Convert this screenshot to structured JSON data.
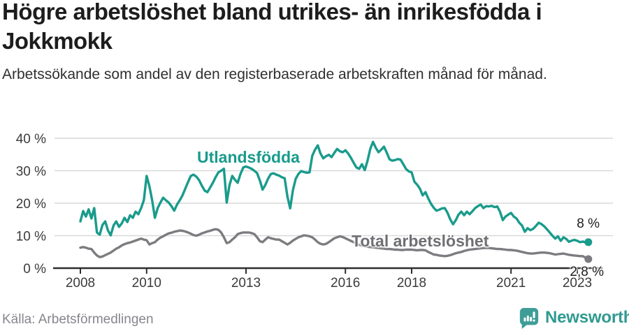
{
  "header": {
    "title": "Högre arbetslöshet bland utrikes- än inrikesfödda i Jokkmokk",
    "subtitle": "Arbetssökande som andel av den registerbaserade arbetskraften månad för månad."
  },
  "source": "Källa: Arbetsförmedlingen",
  "brand": {
    "name": "Newsworthy",
    "color": "#3f9d97"
  },
  "chart_data": {
    "type": "line",
    "title": "Högre arbetslöshet bland utrikes- än inrikesfödda i Jokkmokk",
    "subtitle": "Arbetssökande som andel av den registerbaserade arbetskraften månad för månad.",
    "start_year": 2008,
    "points_per_year": 12,
    "x_range": [
      2008.0,
      2023.42
    ],
    "ylim": [
      0,
      40
    ],
    "grid": true,
    "legend_position": "inline-labels",
    "y_ticks": [
      {
        "value": 0,
        "label": "0 %"
      },
      {
        "value": 10,
        "label": "10 %"
      },
      {
        "value": 20,
        "label": "20 %"
      },
      {
        "value": 30,
        "label": "30 %"
      },
      {
        "value": 40,
        "label": "40 %"
      }
    ],
    "x_ticks": [
      {
        "year": 2008,
        "label": "2008"
      },
      {
        "year": 2010,
        "label": "2010"
      },
      {
        "year": 2013,
        "label": "2013"
      },
      {
        "year": 2016,
        "label": "2016"
      },
      {
        "year": 2018,
        "label": "2018"
      },
      {
        "year": 2021,
        "label": "2021"
      },
      {
        "year": 2023,
        "label": "2023"
      }
    ],
    "series": [
      {
        "name": "Utlandsfödda",
        "color": "#199b8c",
        "end_label": "8 %",
        "end_value": 8.0,
        "values": [
          14.4,
          17.6,
          15.9,
          18.1,
          15.3,
          18.5,
          11.0,
          10.3,
          13.3,
          14.4,
          11.6,
          10.1,
          13.1,
          14.4,
          12.7,
          13.8,
          15.5,
          14.2,
          16.3,
          15.5,
          17.4,
          16.6,
          18.5,
          20.9,
          28.4,
          25.2,
          20.9,
          15.5,
          18.5,
          20.2,
          21.7,
          20.9,
          20.2,
          19.1,
          17.7,
          19.6,
          20.9,
          22.4,
          24.5,
          26.5,
          28.4,
          28.8,
          28.2,
          27.1,
          25.4,
          23.9,
          23.4,
          24.8,
          26.3,
          28.0,
          29.5,
          30.0,
          30.6,
          20.2,
          25.5,
          28.4,
          27.2,
          26.3,
          29.0,
          31.0,
          31.3,
          31.0,
          30.6,
          30.0,
          29.3,
          27.0,
          24.2,
          25.6,
          27.6,
          29.0,
          29.2,
          28.8,
          28.5,
          28.0,
          27.7,
          22.0,
          18.4,
          24.0,
          27.5,
          29.0,
          29.9,
          29.6,
          29.4,
          29.5,
          34.6,
          36.5,
          37.8,
          35.3,
          33.8,
          34.5,
          34.9,
          34.2,
          35.5,
          36.7,
          36.0,
          35.7,
          36.3,
          35.3,
          34.0,
          32.4,
          31.0,
          30.6,
          32.0,
          30.2,
          33.0,
          36.7,
          38.9,
          37.1,
          35.7,
          36.5,
          37.4,
          35.5,
          33.5,
          33.1,
          33.3,
          33.6,
          33.4,
          32.0,
          30.5,
          29.8,
          29.5,
          26.6,
          25.7,
          24.5,
          22.4,
          23.4,
          21.5,
          19.8,
          18.6,
          17.7,
          18.0,
          18.4,
          18.5,
          17.0,
          15.0,
          13.5,
          14.8,
          16.5,
          17.4,
          16.3,
          17.4,
          16.6,
          17.5,
          18.5,
          19.1,
          19.6,
          18.5,
          19.1,
          19.0,
          19.2,
          18.8,
          19.0,
          17.4,
          14.8,
          15.9,
          16.5,
          17.0,
          15.9,
          15.3,
          14.0,
          13.1,
          11.2,
          12.3,
          11.7,
          12.1,
          13.0,
          14.0,
          13.6,
          12.9,
          12.0,
          11.0,
          10.0,
          9.1,
          9.8,
          8.4,
          9.5,
          9.0,
          8.1,
          8.5,
          8.7,
          8.4,
          8.0,
          8.2,
          7.9,
          8.0
        ]
      },
      {
        "name": "Total arbetslöshet",
        "color": "#7c7c80",
        "end_label": "2,8 %",
        "end_value": 2.8,
        "values": [
          6.3,
          6.5,
          6.3,
          6.0,
          5.9,
          4.8,
          3.9,
          3.4,
          3.6,
          4.0,
          4.4,
          4.8,
          5.4,
          6.0,
          6.4,
          7.0,
          7.4,
          7.7,
          7.9,
          8.2,
          8.5,
          8.8,
          9.1,
          8.8,
          8.6,
          7.3,
          7.7,
          8.0,
          8.8,
          9.4,
          9.8,
          10.3,
          10.7,
          10.9,
          11.2,
          11.4,
          11.6,
          11.5,
          11.3,
          11.0,
          10.6,
          10.2,
          10.0,
          10.3,
          10.7,
          11.0,
          11.3,
          11.5,
          11.8,
          12.0,
          11.8,
          11.0,
          9.5,
          7.7,
          8.0,
          8.8,
          9.5,
          10.5,
          10.8,
          11.0,
          11.0,
          11.0,
          10.8,
          10.5,
          9.5,
          8.3,
          8.0,
          8.8,
          9.5,
          9.2,
          9.0,
          8.8,
          8.8,
          8.3,
          7.8,
          7.3,
          7.8,
          8.5,
          9.0,
          9.5,
          9.8,
          10.1,
          10.0,
          9.8,
          9.5,
          8.8,
          8.0,
          7.5,
          7.3,
          7.5,
          8.0,
          8.6,
          9.2,
          9.5,
          9.8,
          9.6,
          9.2,
          8.8,
          8.4,
          8.0,
          7.6,
          7.2,
          6.9,
          6.7,
          6.6,
          6.5,
          6.4,
          6.3,
          6.2,
          6.1,
          6.0,
          5.9,
          5.9,
          5.8,
          5.7,
          5.7,
          5.6,
          5.6,
          5.7,
          5.7,
          5.7,
          5.6,
          5.5,
          5.6,
          5.6,
          5.5,
          5.0,
          4.6,
          4.2,
          4.1,
          3.9,
          3.8,
          3.7,
          3.8,
          4.0,
          4.3,
          4.6,
          4.8,
          5.0,
          5.3,
          5.5,
          5.7,
          5.8,
          5.9,
          6.0,
          6.1,
          6.2,
          6.2,
          6.2,
          6.1,
          6.0,
          5.9,
          5.9,
          5.8,
          5.7,
          5.6,
          5.6,
          5.5,
          5.4,
          5.2,
          5.0,
          4.8,
          4.6,
          4.5,
          4.5,
          4.6,
          4.7,
          4.8,
          4.8,
          4.7,
          4.6,
          4.4,
          4.2,
          4.3,
          4.4,
          4.5,
          4.3,
          4.1,
          4.0,
          3.9,
          3.8,
          3.7,
          3.7,
          3.2,
          2.8
        ]
      }
    ]
  }
}
